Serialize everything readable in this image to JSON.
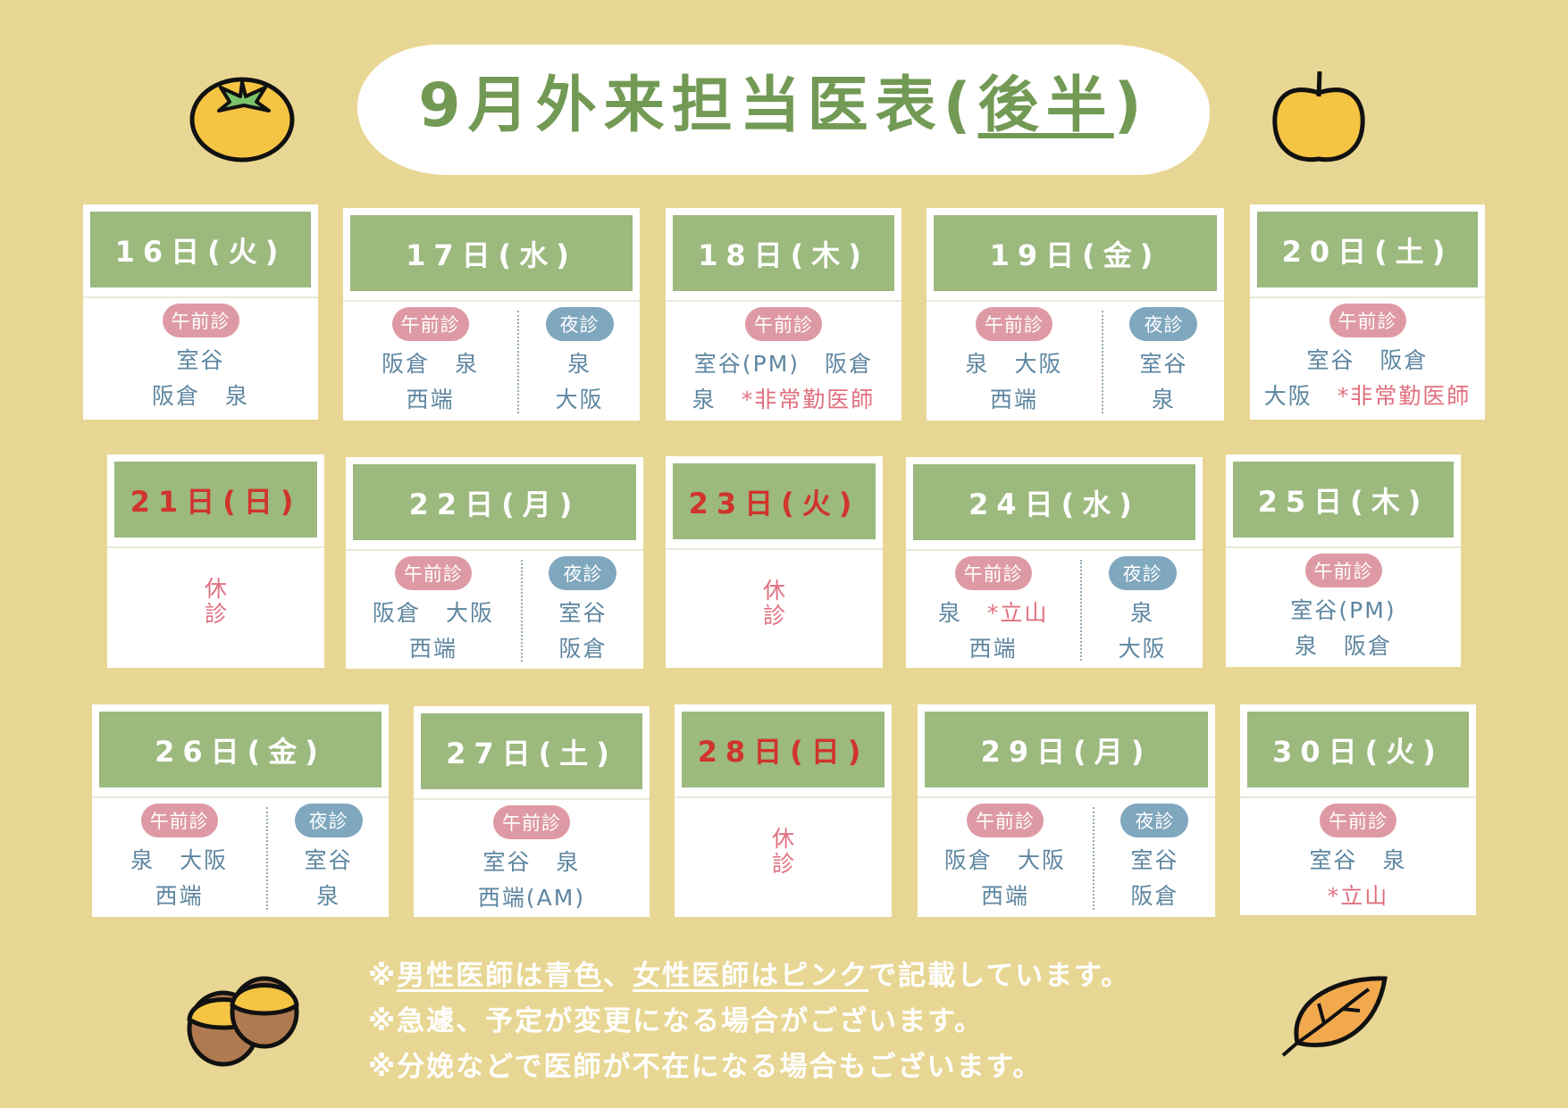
{
  "title": {
    "main": "9月外来担当医表(",
    "sub": "後半",
    "close": ")"
  },
  "badges": {
    "am": "午前診",
    "night": "夜診"
  },
  "closed_label": "休診",
  "colors": {
    "background": "#e8d794",
    "header_green": "#9cb97e",
    "title_green": "#739a55",
    "am_badge": "#de9aa4",
    "night_badge": "#7fa7be",
    "male_doctor": "#5e86a0",
    "female_doctor": "#e0707f",
    "holiday": "#d0342c"
  },
  "cards": [
    {
      "date": "16日(火)",
      "am": [
        [
          "室谷"
        ],
        [
          "阪倉",
          "泉"
        ]
      ]
    },
    {
      "date": "17日(水)",
      "am": [
        [
          "阪倉",
          "泉"
        ],
        [
          "西端"
        ]
      ],
      "night": [
        [
          "泉"
        ],
        [
          "大阪"
        ]
      ]
    },
    {
      "date": "18日(木)",
      "am": [
        [
          "室谷(PM)",
          "阪倉"
        ],
        [
          "泉",
          "*非常勤医師"
        ]
      ]
    },
    {
      "date": "19日(金)",
      "am": [
        [
          "泉",
          "大阪"
        ],
        [
          "西端"
        ]
      ],
      "night": [
        [
          "室谷"
        ],
        [
          "泉"
        ]
      ]
    },
    {
      "date": "20日(土)",
      "am": [
        [
          "室谷",
          "阪倉"
        ],
        [
          "大阪",
          "*非常勤医師"
        ]
      ]
    },
    {
      "date": "21日(日)",
      "holiday": true,
      "closed": true
    },
    {
      "date": "22日(月)",
      "am": [
        [
          "阪倉",
          "大阪"
        ],
        [
          "西端"
        ]
      ],
      "night": [
        [
          "室谷"
        ],
        [
          "阪倉"
        ]
      ]
    },
    {
      "date": "23日(火)",
      "holiday": true,
      "closed": true
    },
    {
      "date": "24日(水)",
      "am": [
        [
          "泉",
          "*立山"
        ],
        [
          "西端"
        ]
      ],
      "night": [
        [
          "泉"
        ],
        [
          "大阪"
        ]
      ]
    },
    {
      "date": "25日(木)",
      "am": [
        [
          "室谷(PM)"
        ],
        [
          "泉",
          "阪倉"
        ]
      ]
    },
    {
      "date": "26日(金)",
      "am": [
        [
          "泉",
          "大阪"
        ],
        [
          "西端"
        ]
      ],
      "night": [
        [
          "室谷"
        ],
        [
          "泉"
        ]
      ]
    },
    {
      "date": "27日(土)",
      "am": [
        [
          "室谷",
          "泉"
        ],
        [
          "西端(AM)"
        ]
      ]
    },
    {
      "date": "28日(日)",
      "holiday": true,
      "closed": true
    },
    {
      "date": "29日(月)",
      "am": [
        [
          "阪倉",
          "大阪"
        ],
        [
          "西端"
        ]
      ],
      "night": [
        [
          "室谷"
        ],
        [
          "阪倉"
        ]
      ]
    },
    {
      "date": "30日(火)",
      "am": [
        [
          "室谷",
          "泉"
        ],
        [
          "*立山"
        ]
      ]
    }
  ],
  "notes": {
    "line1_a": "※",
    "line1_male": "男性医師は青色",
    "line1_b": "、",
    "line1_female": "女性医師はピンク",
    "line1_c": "で記載しています。",
    "line2": "※急遽、予定が変更になる場合がございます。",
    "line3": "※分娩などで医師が不在になる場合もございます。"
  },
  "decorations": [
    "persimmon-icon",
    "apple-icon",
    "acorn-icon",
    "leaf-icon"
  ]
}
